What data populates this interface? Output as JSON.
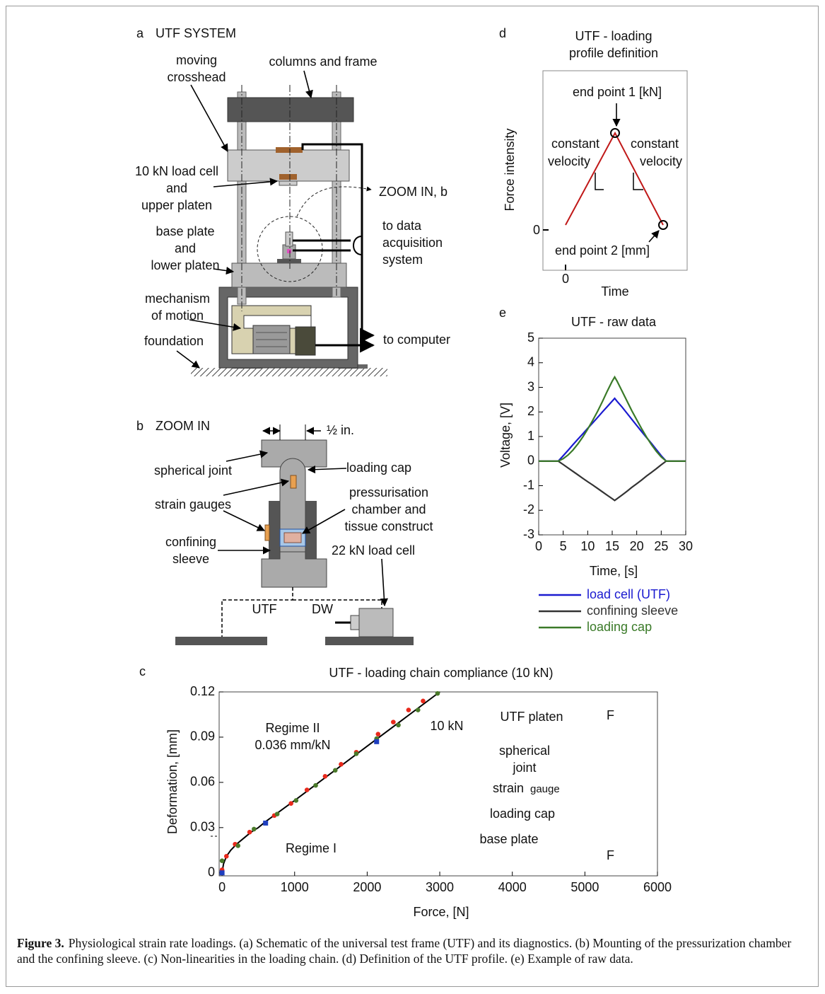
{
  "panel_a": {
    "label": "a",
    "title": "UTF SYSTEM",
    "moving_crosshead": [
      "moving",
      "crosshead"
    ],
    "columns": "columns and frame",
    "load_cell": [
      "10 kN load cell",
      "and",
      "upper platen"
    ],
    "zoom": "ZOOM IN, b",
    "base_plate": [
      "base plate",
      "and",
      "lower platen"
    ],
    "daq": [
      "to data",
      "acquisition",
      "system"
    ],
    "mechanism": [
      "mechanism",
      "of motion"
    ],
    "foundation": "foundation",
    "computer": "to computer"
  },
  "panel_b": {
    "label": "b",
    "title": "ZOOM IN",
    "half_inch": "½ in.",
    "spherical_joint": "spherical joint",
    "loading_cap": "loading cap",
    "strain_gauges": "strain gauges",
    "chamber": [
      "pressurisation",
      "chamber and",
      "tissue construct"
    ],
    "sleeve": [
      "confining",
      "sleeve"
    ],
    "load_cell": "22 kN load cell",
    "utf": "UTF",
    "dw": "DW"
  },
  "panel_d": {
    "label": "d",
    "title": [
      "UTF - loading",
      "profile definition"
    ],
    "end_point_1": "end point 1 [kN]",
    "left": [
      "constant",
      "velocity"
    ],
    "right": [
      "constant",
      "velocity"
    ],
    "y_label": "Force intensity",
    "y_zero": "0",
    "x_zero": "0",
    "end_point_2": "end point 2 [mm]",
    "x_label": "Time"
  },
  "chart_data": [
    {
      "type": "scatter",
      "label": "c",
      "title": "UTF - loading chain compliance (10 kN)",
      "x_label": "Force, [N]",
      "y_label": "Deformation, [mm]",
      "xlim": [
        -40,
        6000
      ],
      "ylim": [
        -0.002,
        0.12
      ],
      "xticks": [
        0,
        1000,
        2000,
        3000,
        4000,
        5000,
        6000
      ],
      "yticks": [
        0,
        0.03,
        0.06,
        0.09,
        0.12
      ],
      "annotations": [
        "Regime II",
        "0.036 mm/kN",
        "10 kN",
        "Regime I"
      ],
      "inset": {
        "platen": "UTF platen",
        "force_top": "F",
        "joint": [
          "spherical",
          "joint"
        ],
        "gauge": [
          "strain",
          "gauge"
        ],
        "cap": "loading cap",
        "base": "base plate",
        "force_bottom": "F"
      },
      "series": [
        {
          "mode": "line",
          "color": "#000000",
          "x": [
            0,
            20,
            60,
            120,
            200,
            300,
            400,
            500,
            600,
            800,
            1000,
            1500,
            2000,
            2500,
            3000
          ],
          "values": [
            0,
            0.006,
            0.011,
            0.015,
            0.019,
            0.023,
            0.027,
            0.03,
            0.034,
            0.041,
            0.048,
            0.066,
            0.084,
            0.102,
            0.12
          ]
        },
        {
          "mode": "marker",
          "marker": "circle",
          "color": "#e8291c",
          "x": [
            0,
            60,
            180,
            380,
            720,
            950,
            1170,
            1420,
            1640,
            1850,
            2150,
            2360,
            2570,
            2770
          ],
          "values": [
            0.002,
            0.011,
            0.019,
            0.027,
            0.038,
            0.046,
            0.055,
            0.064,
            0.072,
            0.08,
            0.092,
            0.1,
            0.108,
            0.114
          ]
        },
        {
          "mode": "marker",
          "marker": "circle",
          "color": "#4a7a2a",
          "x": [
            0,
            220,
            440,
            760,
            1020,
            1290,
            1560,
            1850,
            2130,
            2430,
            2700,
            2970
          ],
          "values": [
            0.008,
            0.018,
            0.029,
            0.039,
            0.048,
            0.058,
            0.068,
            0.079,
            0.089,
            0.098,
            0.108,
            0.119
          ]
        },
        {
          "mode": "marker",
          "marker": "square",
          "color": "#1f3fbf",
          "x": [
            0,
            600,
            2130
          ],
          "values": [
            0,
            0.033,
            0.087
          ]
        }
      ]
    },
    {
      "type": "line",
      "label": "e",
      "title": "UTF - raw data",
      "x_label": "Time, [s]",
      "y_label": "Voltage, [V]",
      "xlim": [
        0,
        30
      ],
      "ylim": [
        -3,
        5
      ],
      "xticks": [
        0,
        5,
        10,
        15,
        20,
        25,
        30
      ],
      "yticks": [
        -3,
        -2,
        -1,
        0,
        1,
        2,
        3,
        4,
        5
      ],
      "x": [
        0,
        4,
        5,
        6,
        7,
        8,
        9,
        10,
        11,
        12,
        13,
        14,
        15,
        15.5,
        16,
        17,
        18,
        19,
        20,
        21,
        22,
        23,
        24,
        25,
        26,
        30
      ],
      "series": [
        {
          "name": "load cell (UTF)",
          "color": "#1a1ad0",
          "values": [
            0,
            0,
            0.22,
            0.44,
            0.67,
            0.89,
            1.11,
            1.33,
            1.55,
            1.77,
            2.0,
            2.22,
            2.44,
            2.55,
            2.43,
            2.2,
            1.95,
            1.7,
            1.45,
            1.2,
            0.96,
            0.72,
            0.47,
            0.22,
            0,
            0
          ]
        },
        {
          "name": "confining sleeve",
          "color": "#333333",
          "values": [
            0,
            0,
            -0.14,
            -0.28,
            -0.42,
            -0.56,
            -0.7,
            -0.84,
            -0.97,
            -1.11,
            -1.25,
            -1.39,
            -1.53,
            -1.6,
            -1.53,
            -1.38,
            -1.23,
            -1.07,
            -0.92,
            -0.77,
            -0.61,
            -0.46,
            -0.31,
            -0.15,
            0,
            0
          ]
        },
        {
          "name": "loading cap",
          "color": "#3a7a28",
          "values": [
            0,
            0,
            0.1,
            0.25,
            0.45,
            0.7,
            0.98,
            1.3,
            1.65,
            2.02,
            2.42,
            2.85,
            3.25,
            3.42,
            3.25,
            2.85,
            2.45,
            2.05,
            1.68,
            1.32,
            0.98,
            0.67,
            0.4,
            0.17,
            0,
            0
          ]
        }
      ]
    }
  ],
  "caption": {
    "label": "Figure 3.",
    "text": "Physiological strain rate loadings. (a) Schematic of the universal test frame (UTF) and its diagnostics. (b) Mounting of the pressurization chamber and the confining sleeve. (c) Non-linearities in the loading chain. (d) Definition of the UTF profile. (e) Example of raw data."
  }
}
